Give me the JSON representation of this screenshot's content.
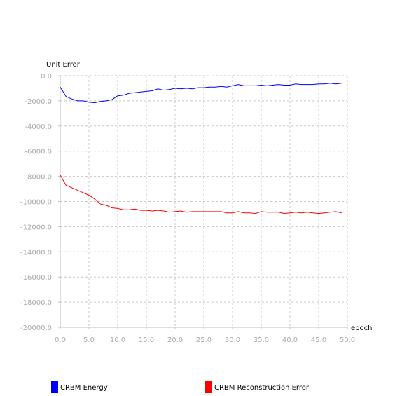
{
  "chart_data": {
    "type": "line",
    "title": "",
    "xlabel": "epoch",
    "ylabel": "Unit Error",
    "xlim": [
      0,
      50
    ],
    "ylim": [
      -20000,
      0
    ],
    "x_ticks": [
      0,
      5,
      10,
      15,
      20,
      25,
      30,
      35,
      40,
      45,
      50
    ],
    "y_ticks": [
      0,
      -2000,
      -4000,
      -6000,
      -8000,
      -10000,
      -12000,
      -14000,
      -16000,
      -18000,
      -20000
    ],
    "x_tick_labels": [
      "0.0",
      "5.0",
      "10.0",
      "15.0",
      "20.0",
      "25.0",
      "30.0",
      "35.0",
      "40.0",
      "45.0",
      "50.0"
    ],
    "y_tick_labels": [
      "0.0",
      "-2000.0",
      "-4000.0",
      "-6000.0",
      "-8000.0",
      "-10000.0",
      "-12000.0",
      "-14000.0",
      "-16000.0",
      "-18000.0",
      "-20000.0"
    ],
    "grid": true,
    "legend_position": "bottom",
    "x": [
      0,
      1,
      2,
      3,
      4,
      5,
      6,
      7,
      8,
      9,
      10,
      11,
      12,
      13,
      14,
      15,
      16,
      17,
      18,
      19,
      20,
      21,
      22,
      23,
      24,
      25,
      26,
      27,
      28,
      29,
      30,
      31,
      32,
      33,
      34,
      35,
      36,
      37,
      38,
      39,
      40,
      41,
      42,
      43,
      44,
      45,
      46,
      47,
      48,
      49
    ],
    "series": [
      {
        "name": "CRBM Energy",
        "color": "#0000ff",
        "values": [
          -900,
          -1650,
          -1850,
          -2000,
          -2000,
          -2100,
          -2150,
          -2050,
          -2000,
          -1900,
          -1600,
          -1550,
          -1400,
          -1350,
          -1300,
          -1250,
          -1200,
          -1050,
          -1150,
          -1100,
          -1000,
          -1050,
          -1000,
          -1050,
          -950,
          -950,
          -900,
          -900,
          -850,
          -900,
          -800,
          -700,
          -800,
          -800,
          -800,
          -750,
          -800,
          -750,
          -700,
          -750,
          -750,
          -650,
          -700,
          -700,
          -700,
          -650,
          -650,
          -600,
          -650,
          -600
        ]
      },
      {
        "name": "CRBM Reconstruction Error",
        "color": "#ff0000",
        "values": [
          -7900,
          -8700,
          -8900,
          -9100,
          -9300,
          -9500,
          -9800,
          -10200,
          -10300,
          -10500,
          -10550,
          -10650,
          -10650,
          -10600,
          -10700,
          -10700,
          -10750,
          -10700,
          -10750,
          -10850,
          -10800,
          -10750,
          -10850,
          -10800,
          -10800,
          -10800,
          -10800,
          -10800,
          -10800,
          -10900,
          -10900,
          -10800,
          -10900,
          -10900,
          -10950,
          -10800,
          -10850,
          -10850,
          -10850,
          -10950,
          -10900,
          -10850,
          -10900,
          -10850,
          -10900,
          -10950,
          -10900,
          -10850,
          -10800,
          -10900
        ]
      }
    ]
  }
}
